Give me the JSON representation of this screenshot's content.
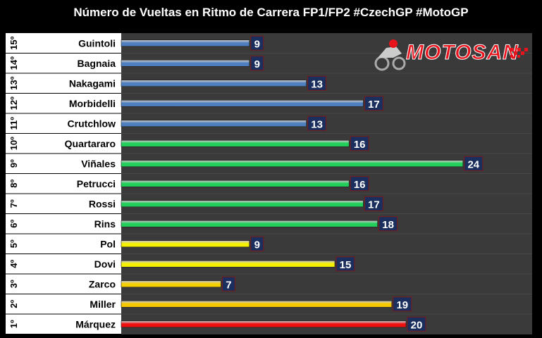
{
  "chart_data": {
    "type": "bar",
    "orientation": "horizontal",
    "title": "Número de Vueltas en Ritmo de Carrera FP1/FP2 #CzechGP #MotoGP",
    "positions": [
      "15º",
      "14º",
      "13º",
      "12º",
      "11º",
      "10º",
      "9º",
      "8º",
      "7º",
      "6º",
      "5º",
      "4º",
      "3º",
      "2º",
      "1º"
    ],
    "categories": [
      "Guintoli",
      "Bagnaia",
      "Nakagami",
      "Morbidelli",
      "Crutchlow",
      "Quartararo",
      "Viñales",
      "Petrucci",
      "Rossi",
      "Rins",
      "Pol",
      "Dovi",
      "Zarco",
      "Miller",
      "Márquez"
    ],
    "values": [
      9,
      9,
      13,
      17,
      13,
      16,
      24,
      16,
      17,
      18,
      9,
      15,
      7,
      19,
      20
    ],
    "bar_colors": [
      "#4e7fbf",
      "#4e7fbf",
      "#4e7fbf",
      "#4e7fbf",
      "#4e7fbf",
      "#22cf5a",
      "#22cf5a",
      "#22cf5a",
      "#22cf5a",
      "#22cf5a",
      "#f4f000",
      "#f4f000",
      "#f7d000",
      "#f7c800",
      "#f01010"
    ],
    "label_box_color": "#1b2f5e",
    "xlim": [
      0,
      30
    ],
    "grid": false,
    "legend": "none"
  },
  "logo": {
    "text": "MOTOSAN"
  }
}
